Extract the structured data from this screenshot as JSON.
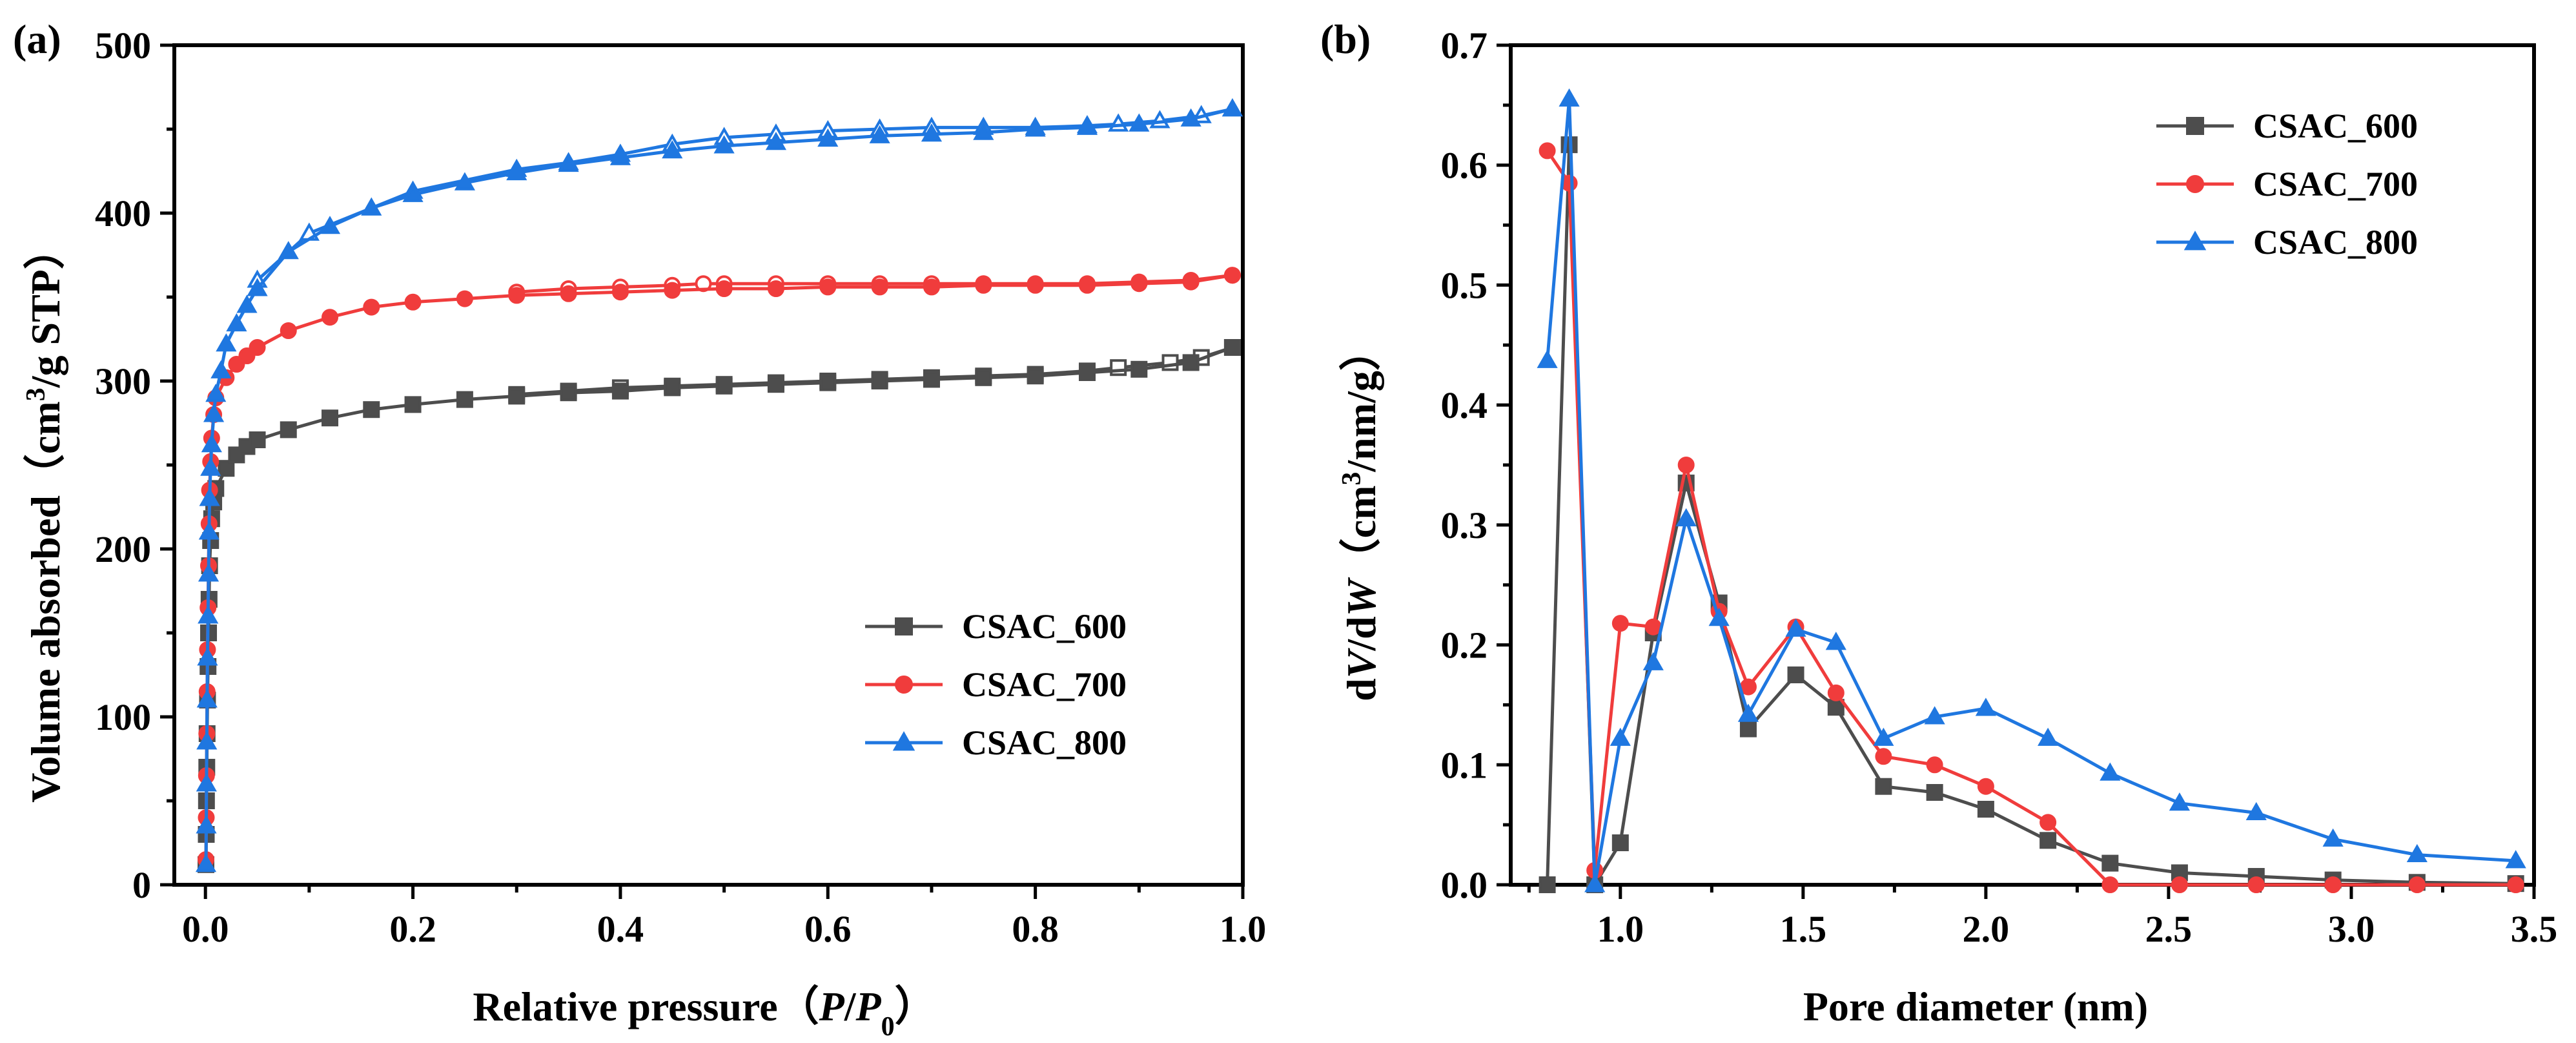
{
  "chart_data": [
    {
      "panel_label": "(a)",
      "type": "line",
      "xlabel_parts": [
        "Relative pressure（",
        "P",
        "/",
        "P",
        "0",
        "）"
      ],
      "ylabel_parts": [
        "Volume absorbed（cm",
        "3",
        "/g STP）"
      ],
      "xlim": [
        -0.03,
        1.0
      ],
      "ylim": [
        0,
        500
      ],
      "xticks": [
        0.0,
        0.2,
        0.4,
        0.6,
        0.8,
        1.0
      ],
      "xtick_labels": [
        "0.0",
        "0.2",
        "0.4",
        "0.6",
        "0.8",
        "1.0"
      ],
      "yticks": [
        0,
        100,
        200,
        300,
        400,
        500
      ],
      "ytick_labels": [
        "0",
        "100",
        "200",
        "300",
        "400",
        "500"
      ],
      "legend_position": "lower-right",
      "series": [
        {
          "name": "CSAC_600",
          "color": "#4d4d4d",
          "marker": "square",
          "adsorption": [
            [
              0.0005,
              12
            ],
            [
              0.0008,
              30
            ],
            [
              0.001,
              50
            ],
            [
              0.0013,
              70
            ],
            [
              0.0016,
              90
            ],
            [
              0.002,
              110
            ],
            [
              0.0025,
              130
            ],
            [
              0.003,
              150
            ],
            [
              0.0035,
              170
            ],
            [
              0.004,
              190
            ],
            [
              0.005,
              205
            ],
            [
              0.006,
              218
            ],
            [
              0.008,
              228
            ],
            [
              0.01,
              236
            ],
            [
              0.02,
              248
            ],
            [
              0.03,
              256
            ],
            [
              0.04,
              261
            ],
            [
              0.05,
              265
            ],
            [
              0.08,
              271
            ],
            [
              0.12,
              278
            ],
            [
              0.16,
              283
            ],
            [
              0.2,
              286
            ],
            [
              0.25,
              289
            ],
            [
              0.3,
              291
            ],
            [
              0.35,
              293
            ],
            [
              0.4,
              294
            ],
            [
              0.45,
              296
            ],
            [
              0.5,
              297
            ],
            [
              0.55,
              298
            ],
            [
              0.6,
              299
            ],
            [
              0.65,
              300
            ],
            [
              0.7,
              301
            ],
            [
              0.75,
              302
            ],
            [
              0.8,
              303
            ],
            [
              0.85,
              305
            ],
            [
              0.9,
              307
            ],
            [
              0.95,
              311
            ],
            [
              0.99,
              320
            ]
          ],
          "desorption": [
            [
              0.99,
              320
            ],
            [
              0.96,
              314
            ],
            [
              0.93,
              311
            ],
            [
              0.88,
              308
            ],
            [
              0.85,
              306
            ],
            [
              0.8,
              304
            ],
            [
              0.75,
              303
            ],
            [
              0.7,
              302
            ],
            [
              0.65,
              301
            ],
            [
              0.6,
              300
            ],
            [
              0.55,
              299
            ],
            [
              0.5,
              298
            ],
            [
              0.45,
              297
            ],
            [
              0.4,
              296
            ],
            [
              0.35,
              294
            ],
            [
              0.3,
              292
            ]
          ]
        },
        {
          "name": "CSAC_700",
          "color": "#f03c3c",
          "marker": "circle",
          "adsorption": [
            [
              0.0005,
              15
            ],
            [
              0.0008,
              40
            ],
            [
              0.001,
              65
            ],
            [
              0.0013,
              90
            ],
            [
              0.0016,
              115
            ],
            [
              0.002,
              140
            ],
            [
              0.0025,
              165
            ],
            [
              0.003,
              190
            ],
            [
              0.0035,
              215
            ],
            [
              0.004,
              235
            ],
            [
              0.005,
              252
            ],
            [
              0.006,
              266
            ],
            [
              0.008,
              280
            ],
            [
              0.01,
              290
            ],
            [
              0.02,
              302
            ],
            [
              0.03,
              310
            ],
            [
              0.04,
              315
            ],
            [
              0.05,
              320
            ],
            [
              0.08,
              330
            ],
            [
              0.12,
              338
            ],
            [
              0.16,
              344
            ],
            [
              0.2,
              347
            ],
            [
              0.25,
              349
            ],
            [
              0.3,
              351
            ],
            [
              0.35,
              352
            ],
            [
              0.4,
              353
            ],
            [
              0.45,
              354
            ],
            [
              0.5,
              355
            ],
            [
              0.55,
              355
            ],
            [
              0.6,
              356
            ],
            [
              0.65,
              356
            ],
            [
              0.7,
              356
            ],
            [
              0.75,
              357
            ],
            [
              0.8,
              357
            ],
            [
              0.85,
              357
            ],
            [
              0.9,
              358
            ],
            [
              0.95,
              359
            ],
            [
              0.99,
              363
            ]
          ],
          "desorption": [
            [
              0.99,
              363
            ],
            [
              0.95,
              360
            ],
            [
              0.9,
              359
            ],
            [
              0.85,
              358
            ],
            [
              0.8,
              358
            ],
            [
              0.75,
              358
            ],
            [
              0.7,
              358
            ],
            [
              0.65,
              358
            ],
            [
              0.6,
              358
            ],
            [
              0.55,
              358
            ],
            [
              0.5,
              358
            ],
            [
              0.48,
              358
            ],
            [
              0.45,
              357
            ],
            [
              0.4,
              356
            ],
            [
              0.35,
              355
            ],
            [
              0.3,
              353
            ]
          ]
        },
        {
          "name": "CSAC_800",
          "color": "#1f77e0",
          "marker": "triangle",
          "adsorption": [
            [
              0.0005,
              12
            ],
            [
              0.0008,
              35
            ],
            [
              0.001,
              60
            ],
            [
              0.0013,
              85
            ],
            [
              0.0016,
              110
            ],
            [
              0.002,
              135
            ],
            [
              0.0025,
              160
            ],
            [
              0.003,
              185
            ],
            [
              0.0035,
              210
            ],
            [
              0.004,
              230
            ],
            [
              0.005,
              248
            ],
            [
              0.006,
              262
            ],
            [
              0.008,
              280
            ],
            [
              0.01,
              292
            ],
            [
              0.015,
              306
            ],
            [
              0.02,
              322
            ],
            [
              0.03,
              334
            ],
            [
              0.04,
              345
            ],
            [
              0.05,
              355
            ],
            [
              0.08,
              377
            ],
            [
              0.12,
              392
            ],
            [
              0.16,
              403
            ],
            [
              0.2,
              411
            ],
            [
              0.25,
              418
            ],
            [
              0.3,
              424
            ],
            [
              0.35,
              429
            ],
            [
              0.4,
              433
            ],
            [
              0.45,
              437
            ],
            [
              0.5,
              440
            ],
            [
              0.55,
              442
            ],
            [
              0.6,
              444
            ],
            [
              0.65,
              446
            ],
            [
              0.7,
              447
            ],
            [
              0.75,
              448
            ],
            [
              0.8,
              450
            ],
            [
              0.85,
              451
            ],
            [
              0.9,
              453
            ],
            [
              0.95,
              456
            ],
            [
              0.99,
              462
            ]
          ],
          "desorption": [
            [
              0.99,
              462
            ],
            [
              0.96,
              458
            ],
            [
              0.92,
              455
            ],
            [
              0.88,
              453
            ],
            [
              0.85,
              452
            ],
            [
              0.8,
              451
            ],
            [
              0.75,
              451
            ],
            [
              0.7,
              451
            ],
            [
              0.65,
              450
            ],
            [
              0.6,
              449
            ],
            [
              0.55,
              447
            ],
            [
              0.5,
              445
            ],
            [
              0.45,
              441
            ],
            [
              0.4,
              435
            ],
            [
              0.35,
              430
            ],
            [
              0.3,
              426
            ],
            [
              0.2,
              413
            ],
            [
              0.1,
              388
            ],
            [
              0.05,
              360
            ]
          ]
        }
      ]
    },
    {
      "panel_label": "(b)",
      "type": "line",
      "xlabel_parts": [
        "Pore diameter (nm)"
      ],
      "ylabel_parts": [
        "d",
        "V",
        "/d",
        "W",
        "（cm",
        "3",
        "/nm/g）"
      ],
      "xlim": [
        0.7,
        3.5
      ],
      "ylim": [
        0,
        0.7
      ],
      "xticks": [
        1.0,
        1.5,
        2.0,
        2.5,
        3.0,
        3.5
      ],
      "xtick_labels": [
        "1.0",
        "1.5",
        "2.0",
        "2.5",
        "3.0",
        "3.5"
      ],
      "yticks": [
        0.0,
        0.1,
        0.2,
        0.3,
        0.4,
        0.5,
        0.6,
        0.7
      ],
      "ytick_labels": [
        "0.0",
        "0.1",
        "0.2",
        "0.3",
        "0.4",
        "0.5",
        "0.6",
        "0.7"
      ],
      "legend_position": "top-right",
      "series": [
        {
          "name": "CSAC_600",
          "color": "#4d4d4d",
          "marker": "square",
          "points": [
            [
              0.8,
              0.0
            ],
            [
              0.86,
              0.617
            ],
            [
              0.93,
              0.0
            ],
            [
              1.0,
              0.035
            ],
            [
              1.09,
              0.21
            ],
            [
              1.18,
              0.335
            ],
            [
              1.27,
              0.235
            ],
            [
              1.35,
              0.13
            ],
            [
              1.48,
              0.175
            ],
            [
              1.59,
              0.148
            ],
            [
              1.72,
              0.082
            ],
            [
              1.86,
              0.077
            ],
            [
              2.0,
              0.063
            ],
            [
              2.17,
              0.037
            ],
            [
              2.34,
              0.018
            ],
            [
              2.53,
              0.01
            ],
            [
              2.74,
              0.007
            ],
            [
              2.95,
              0.004
            ],
            [
              3.18,
              0.002
            ],
            [
              3.45,
              0.001
            ]
          ]
        },
        {
          "name": "CSAC_700",
          "color": "#f03c3c",
          "marker": "circle",
          "points": [
            [
              0.8,
              0.612
            ],
            [
              0.86,
              0.585
            ],
            [
              0.93,
              0.012
            ],
            [
              1.0,
              0.218
            ],
            [
              1.09,
              0.215
            ],
            [
              1.18,
              0.35
            ],
            [
              1.27,
              0.228
            ],
            [
              1.35,
              0.165
            ],
            [
              1.48,
              0.215
            ],
            [
              1.59,
              0.16
            ],
            [
              1.72,
              0.107
            ],
            [
              1.86,
              0.1
            ],
            [
              2.0,
              0.082
            ],
            [
              2.17,
              0.052
            ],
            [
              2.34,
              0.0
            ],
            [
              2.53,
              0.0
            ],
            [
              2.74,
              0.0
            ],
            [
              2.95,
              0.0
            ],
            [
              3.18,
              0.0
            ],
            [
              3.45,
              0.0
            ]
          ]
        },
        {
          "name": "CSAC_800",
          "color": "#1f77e0",
          "marker": "triangle",
          "points": [
            [
              0.8,
              0.437
            ],
            [
              0.86,
              0.655
            ],
            [
              0.93,
              0.0
            ],
            [
              1.0,
              0.122
            ],
            [
              1.09,
              0.185
            ],
            [
              1.18,
              0.305
            ],
            [
              1.27,
              0.222
            ],
            [
              1.35,
              0.142
            ],
            [
              1.48,
              0.213
            ],
            [
              1.59,
              0.202
            ],
            [
              1.72,
              0.122
            ],
            [
              1.86,
              0.14
            ],
            [
              2.0,
              0.147
            ],
            [
              2.17,
              0.122
            ],
            [
              2.34,
              0.093
            ],
            [
              2.53,
              0.068
            ],
            [
              2.74,
              0.06
            ],
            [
              2.95,
              0.038
            ],
            [
              3.18,
              0.025
            ],
            [
              3.45,
              0.02
            ]
          ]
        }
      ]
    }
  ]
}
